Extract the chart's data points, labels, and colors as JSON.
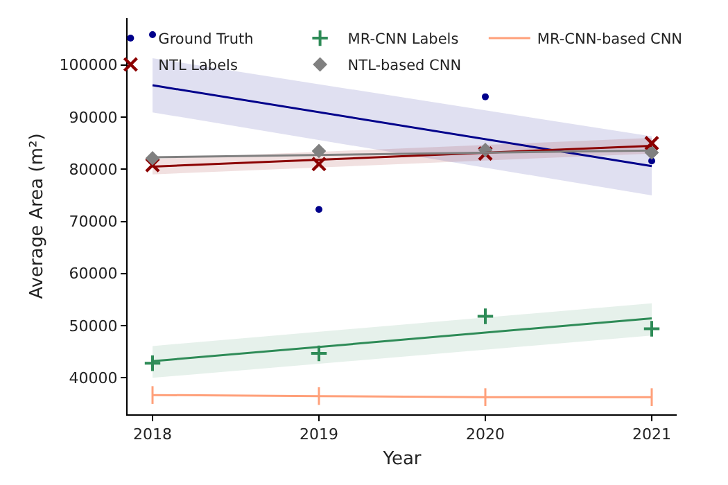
{
  "chart_data": {
    "type": "scatter",
    "xlabel": "Year",
    "ylabel": "Average Area (m²)",
    "xlim": [
      2017.85,
      2021.15
    ],
    "xticks": [
      2018,
      2019,
      2020,
      2021
    ],
    "ylim": [
      33000,
      109000
    ],
    "yticks": [
      40000,
      50000,
      60000,
      70000,
      80000,
      90000,
      100000
    ],
    "grid": false,
    "legend": "top",
    "series": [
      {
        "name": "Ground Truth",
        "marker": "circle",
        "color": "#00008b",
        "x": [
          2018,
          2019,
          2020,
          2021
        ],
        "values": [
          105800,
          72300,
          93900,
          81600
        ]
      },
      {
        "name": "NTL Labels",
        "marker": "x",
        "color": "#8b0000",
        "x": [
          2018,
          2019,
          2020,
          2021
        ],
        "values": [
          80800,
          81000,
          83000,
          85000
        ]
      },
      {
        "name": "MR-CNN Labels",
        "marker": "cross",
        "color": "#2e8b57",
        "x": [
          2018,
          2019,
          2020,
          2021
        ],
        "values": [
          42800,
          44700,
          51800,
          49400
        ]
      },
      {
        "name": "NTL-based CNN",
        "marker": "diamond",
        "color": "#808080",
        "x": [
          2018,
          2019,
          2020,
          2021
        ],
        "values": [
          82100,
          83500,
          83700,
          83200
        ]
      },
      {
        "name": "MR-CNN-based CNN",
        "type": "line",
        "marker": "none",
        "color": "#ffa07a",
        "x": [
          2018,
          2019,
          2020,
          2021
        ],
        "values": [
          36700,
          36500,
          36300,
          36300
        ],
        "errors": [
          1700,
          1700,
          1700,
          1700
        ]
      },
      {
        "type": "line",
        "marker": "none",
        "color": "#00008b",
        "x": [
          2018,
          2021
        ],
        "values": [
          96100,
          80600
        ],
        "lower": [
          90900,
          75000
        ],
        "upper": [
          101300,
          86300
        ]
      },
      {
        "type": "line",
        "marker": "none",
        "color": "#8b0000",
        "x": [
          2018,
          2021
        ],
        "values": [
          80500,
          84500
        ],
        "lower": [
          79000,
          83000
        ],
        "upper": [
          82000,
          86000
        ]
      },
      {
        "type": "line",
        "marker": "none",
        "color": "#2e8b57",
        "x": [
          2018,
          2021
        ],
        "values": [
          43200,
          51400
        ],
        "lower": [
          40000,
          48100
        ],
        "upper": [
          46100,
          54300
        ]
      },
      {
        "type": "line",
        "marker": "none",
        "color": "#808080",
        "x": [
          2018,
          2021
        ],
        "values": [
          82300,
          83600
        ]
      }
    ]
  }
}
